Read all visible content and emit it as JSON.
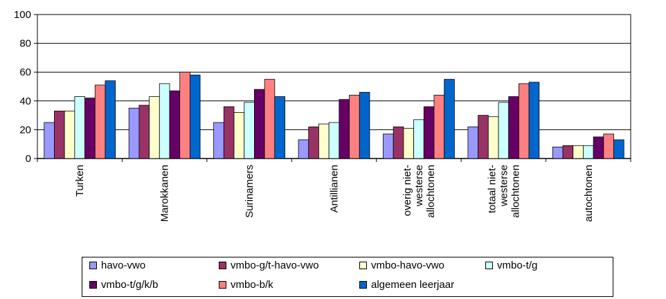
{
  "chart_data": {
    "type": "bar",
    "title": "",
    "xlabel": "",
    "ylabel": "",
    "ylim": [
      0,
      100
    ],
    "yticks": [
      "0",
      "20",
      "40",
      "60",
      "80",
      "100"
    ],
    "grid": true,
    "legend_position": "bottom",
    "categories": [
      [
        "Turken"
      ],
      [
        "Marokkanen"
      ],
      [
        "Surinamers"
      ],
      [
        "Antillianen"
      ],
      [
        "overig niet-",
        "westerse",
        "allochtonen"
      ],
      [
        "totaal niet-",
        "westerse",
        "allochtonen"
      ],
      [
        "autochtonen"
      ]
    ],
    "series": [
      {
        "name": "havo-vwo",
        "color": "#9999ff",
        "values": [
          25,
          35,
          25,
          13,
          17,
          22,
          8
        ]
      },
      {
        "name": "vmbo-g/t-havo-vwo",
        "color": "#993366",
        "values": [
          33,
          37,
          36,
          22,
          22,
          30,
          9
        ]
      },
      {
        "name": "vmbo-havo-vwo",
        "color": "#ffffcc",
        "values": [
          33,
          43,
          32,
          24,
          21,
          29,
          9
        ]
      },
      {
        "name": "vmbo-t/g",
        "color": "#ccffff",
        "values": [
          43,
          52,
          39,
          25,
          27,
          39,
          9
        ]
      },
      {
        "name": "vmbo-t/g/k/b",
        "color": "#660066",
        "values": [
          42,
          47,
          48,
          41,
          36,
          43,
          15
        ]
      },
      {
        "name": "vmbo-b/k",
        "color": "#ff8080",
        "values": [
          51,
          60,
          55,
          44,
          44,
          52,
          17
        ]
      },
      {
        "name": "algemeen leerjaar",
        "color": "#0066cc",
        "values": [
          54,
          58,
          43,
          46,
          55,
          53,
          13
        ]
      }
    ]
  }
}
